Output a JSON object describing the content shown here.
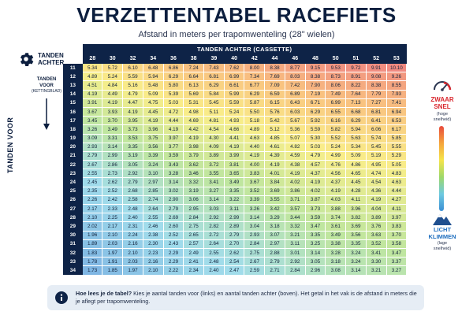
{
  "title": "VERZETTENTABEL RACEFIETS",
  "subtitle": "Afstand in meters per trapomwenteling (28\" wielen)",
  "corner": {
    "label_line1": "TANDEN",
    "label_line2": "ACHTER",
    "icon": "gear-icon"
  },
  "header": {
    "super_label": "TANDEN ACHTER (CASSETTE)",
    "cogs": [
      "28",
      "30",
      "32",
      "34",
      "36",
      "38",
      "39",
      "40",
      "42",
      "44",
      "46",
      "48",
      "50",
      "51",
      "52",
      "53"
    ]
  },
  "left": {
    "axis_label": "TANDEN VOOR",
    "box_line1": "TANDEN",
    "box_line2": "VOOR",
    "box_sub": "(KETTINGBLAD)"
  },
  "legend": {
    "top_icon": "gauge-icon",
    "top_line1": "ZWAAR",
    "top_line2": "SNEL",
    "top_sub1": "(hoge",
    "top_sub2": "snelheid)",
    "bottom_icon": "mountain-icon",
    "bottom_line1": "LICHT",
    "bottom_line2": "KLIMMEN",
    "bottom_sub1": "(lage",
    "bottom_sub2": "snelheid)",
    "colors": [
      "#e84a3c",
      "#f5a33b",
      "#f5e44a",
      "#9ed86a",
      "#6ec9e0",
      "#3a8fd4"
    ]
  },
  "table": {
    "rows": [
      {
        "teeth": "11",
        "values": [
          "5.34",
          "5.72",
          "6.10",
          "6.48",
          "6.86",
          "7.24",
          "7.43",
          "7.62",
          "8.00",
          "8.38",
          "8.77",
          "9.15",
          "9.53",
          "9.72",
          "9.91",
          "10.10"
        ]
      },
      {
        "teeth": "12",
        "values": [
          "4.89",
          "5.24",
          "5.59",
          "5.94",
          "6.29",
          "6.64",
          "6.81",
          "6.99",
          "7.34",
          "7.69",
          "8.03",
          "8.38",
          "8.73",
          "8.91",
          "9.08",
          "9.26"
        ]
      },
      {
        "teeth": "13",
        "values": [
          "4.51",
          "4.84",
          "5.16",
          "5.48",
          "5.80",
          "6.13",
          "6.29",
          "6.61",
          "6.77",
          "7.09",
          "7.42",
          "7.90",
          "8.06",
          "8.22",
          "8.38",
          "8.55"
        ]
      },
      {
        "teeth": "14",
        "values": [
          "4.19",
          "4.49",
          "4.79",
          "5.09",
          "5.39",
          "5.69",
          "5.84",
          "5.99",
          "6.29",
          "6.59",
          "6.89",
          "7.19",
          "7.49",
          "7.64",
          "7.79",
          "7.93"
        ]
      },
      {
        "teeth": "15",
        "values": [
          "3.91",
          "4.19",
          "4.47",
          "4.75",
          "5.03",
          "5.31",
          "5.45",
          "5.59",
          "5.87",
          "6.15",
          "6.43",
          "6.71",
          "6.99",
          "7.13",
          "7.27",
          "7.41"
        ]
      },
      {
        "teeth": "16",
        "values": [
          "3.67",
          "3.93",
          "4.19",
          "4.45",
          "4.72",
          "4.98",
          "5.11",
          "5.24",
          "5.50",
          "5.76",
          "6.03",
          "6.29",
          "6.55",
          "6.68",
          "6.81",
          "6.94"
        ]
      },
      {
        "teeth": "17",
        "values": [
          "3.45",
          "3.70",
          "3.95",
          "4.19",
          "4.44",
          "4.69",
          "4.81",
          "4.93",
          "5.18",
          "5.42",
          "5.67",
          "5.92",
          "6.16",
          "6.29",
          "6.41",
          "6.53"
        ]
      },
      {
        "teeth": "18",
        "values": [
          "3.26",
          "3.49",
          "3.73",
          "3.96",
          "4.19",
          "4.42",
          "4.54",
          "4.66",
          "4.89",
          "5.12",
          "5.36",
          "5.59",
          "5.82",
          "5.94",
          "6.06",
          "6.17"
        ]
      },
      {
        "teeth": "19",
        "values": [
          "3.09",
          "3.31",
          "3.53",
          "3.75",
          "3.97",
          "4.19",
          "4.30",
          "4.41",
          "4.63",
          "4.85",
          "5.07",
          "5.30",
          "5.52",
          "5.63",
          "5.74",
          "5.85"
        ]
      },
      {
        "teeth": "20",
        "values": [
          "2.93",
          "3.14",
          "3.35",
          "3.56",
          "3.77",
          "3.98",
          "4.09",
          "4.19",
          "4.40",
          "4.61",
          "4.82",
          "5.03",
          "5.24",
          "5.34",
          "5.45",
          "5.55"
        ]
      },
      {
        "teeth": "21",
        "values": [
          "2.79",
          "2.99",
          "3.19",
          "3.39",
          "3.59",
          "3.79",
          "3.89",
          "3.99",
          "4.19",
          "4.39",
          "4.59",
          "4.79",
          "4.99",
          "5.09",
          "5.19",
          "5.29"
        ]
      },
      {
        "teeth": "22",
        "values": [
          "2.67",
          "2.86",
          "3.05",
          "3.24",
          "3.43",
          "3.62",
          "3.72",
          "3.81",
          "4.00",
          "4.19",
          "4.38",
          "4.57",
          "4.76",
          "4.86",
          "4.95",
          "5.05"
        ]
      },
      {
        "teeth": "23",
        "values": [
          "2.55",
          "2.73",
          "2.92",
          "3.10",
          "3.28",
          "3.46",
          "3.55",
          "3.65",
          "3.83",
          "4.01",
          "4.19",
          "4.37",
          "4.56",
          "4.65",
          "4.74",
          "4.83"
        ]
      },
      {
        "teeth": "24",
        "values": [
          "2.45",
          "2.62",
          "2.79",
          "2.97",
          "3.14",
          "3.32",
          "3.41",
          "3.49",
          "3.67",
          "3.84",
          "4.02",
          "4.19",
          "4.37",
          "4.45",
          "4.54",
          "4.63"
        ]
      },
      {
        "teeth": "25",
        "values": [
          "2.35",
          "2.52",
          "2.68",
          "2.85",
          "3.02",
          "3.19",
          "3.27",
          "3.35",
          "3.52",
          "3.69",
          "3.86",
          "4.02",
          "4.19",
          "4.28",
          "4.36",
          "4.44"
        ]
      },
      {
        "teeth": "26",
        "values": [
          "2.26",
          "2.42",
          "2.58",
          "2.74",
          "2.90",
          "3.06",
          "3.14",
          "3.22",
          "3.39",
          "3.55",
          "3.71",
          "3.87",
          "4.03",
          "4.11",
          "4.19",
          "4.27"
        ]
      },
      {
        "teeth": "27",
        "values": [
          "2.17",
          "2.33",
          "2.48",
          "2.64",
          "2.79",
          "2.95",
          "3.03",
          "3.11",
          "3.26",
          "3.42",
          "3.57",
          "3.73",
          "3.88",
          "3.96",
          "4.04",
          "4.11"
        ]
      },
      {
        "teeth": "28",
        "values": [
          "2.10",
          "2.25",
          "2.40",
          "2.55",
          "2.69",
          "2.84",
          "2.92",
          "2.99",
          "3.14",
          "3.29",
          "3.44",
          "3.59",
          "3.74",
          "3.82",
          "3.89",
          "3.97"
        ]
      },
      {
        "teeth": "29",
        "values": [
          "2.02",
          "2.17",
          "2.31",
          "2.46",
          "2.60",
          "2.75",
          "2.82",
          "2.89",
          "3.04",
          "3.18",
          "3.32",
          "3.47",
          "3.61",
          "3.69",
          "3.76",
          "3.83"
        ]
      },
      {
        "teeth": "30",
        "values": [
          "1.96",
          "2.10",
          "2.24",
          "2.38",
          "2.52",
          "2.65",
          "2.72",
          "2.79",
          "2.93",
          "3.07",
          "3.21",
          "3.35",
          "3.49",
          "3.56",
          "3.63",
          "3.70"
        ]
      },
      {
        "teeth": "31",
        "values": [
          "1.89",
          "2.03",
          "2.16",
          "2.30",
          "2.43",
          "2.57",
          "2.64",
          "2.70",
          "2.84",
          "2.97",
          "3.11",
          "3.25",
          "3.38",
          "3.35",
          "3.52",
          "3.58"
        ]
      },
      {
        "teeth": "32",
        "values": [
          "1.83",
          "1.97",
          "2.10",
          "2.23",
          "2.29",
          "2.49",
          "2.55",
          "2.62",
          "2.75",
          "2.88",
          "3.01",
          "3.14",
          "3.28",
          "3.24",
          "3.41",
          "3.47"
        ]
      },
      {
        "teeth": "33",
        "values": [
          "1.78",
          "1.91",
          "2.03",
          "2.16",
          "2.29",
          "2.41",
          "2.48",
          "2.54",
          "2.67",
          "2.79",
          "2.92",
          "3.05",
          "3.18",
          "3.24",
          "3.30",
          "3.37"
        ]
      },
      {
        "teeth": "34",
        "values": [
          "1.73",
          "1.85",
          "1.97",
          "2.10",
          "2.22",
          "2.34",
          "2.40",
          "2.47",
          "2.59",
          "2.71",
          "2.84",
          "2.96",
          "3.08",
          "3.14",
          "3.21",
          "3.27"
        ]
      }
    ]
  },
  "info": {
    "icon": "info-icon",
    "bold": "Hoe lees je de tabel?",
    "text": " Kies je aantal tanden voor (links) en aantal tanden achter (boven). Het getal in het vak is de afstand in meters die je aflegt per trapomwenteling."
  }
}
